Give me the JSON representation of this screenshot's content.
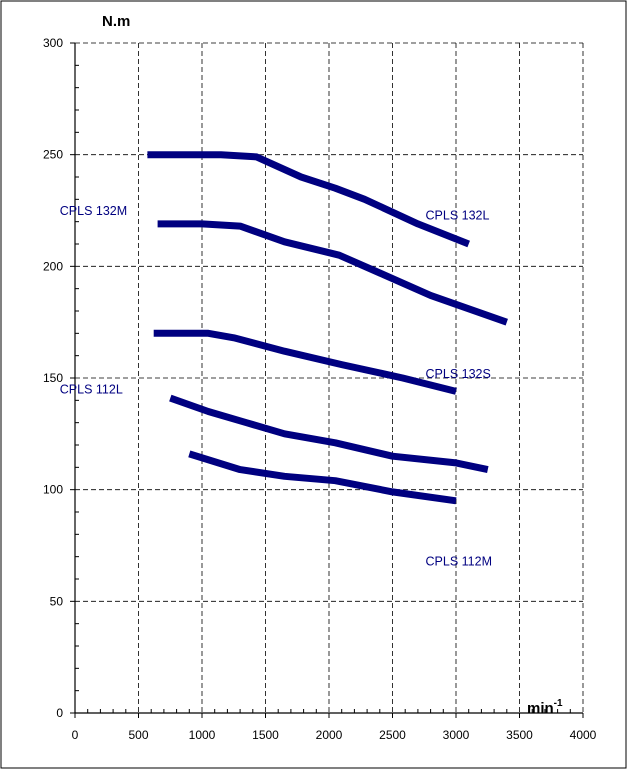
{
  "colors": {
    "line": "#000080",
    "label": "#000080",
    "axis": "#000000",
    "background": "#ffffff"
  },
  "chart_data": {
    "type": "line",
    "title": "",
    "ylabel": "N.m",
    "xlabel": "min",
    "xlabel_superscript": "-1",
    "xlim": [
      0,
      4000
    ],
    "ylim": [
      0,
      300
    ],
    "x_ticks": [
      0,
      500,
      1000,
      1500,
      2000,
      2500,
      3000,
      3500,
      4000
    ],
    "y_ticks": [
      0,
      50,
      100,
      150,
      200,
      250,
      300
    ],
    "grid": true,
    "grid_style": "dashed",
    "series": [
      {
        "name": "CPLS 132L",
        "points": [
          [
            570,
            250
          ],
          [
            1150,
            250
          ],
          [
            1430,
            249
          ],
          [
            1780,
            240
          ],
          [
            2050,
            235
          ],
          [
            2280,
            230
          ],
          [
            2700,
            219
          ],
          [
            3100,
            210
          ]
        ]
      },
      {
        "name": "CPLS 132M",
        "points": [
          [
            650,
            219
          ],
          [
            1000,
            219
          ],
          [
            1300,
            218
          ],
          [
            1650,
            211
          ],
          [
            2080,
            205
          ],
          [
            2400,
            197
          ],
          [
            2800,
            187
          ],
          [
            3400,
            175
          ]
        ]
      },
      {
        "name": "CPLS 132S",
        "points": [
          [
            620,
            170
          ],
          [
            1050,
            170
          ],
          [
            1250,
            168
          ],
          [
            1650,
            162
          ],
          [
            2100,
            156
          ],
          [
            2580,
            150
          ],
          [
            3000,
            144
          ]
        ]
      },
      {
        "name": "CPLS 112L",
        "points": [
          [
            750,
            141
          ],
          [
            1050,
            135
          ],
          [
            1350,
            130
          ],
          [
            1650,
            125
          ],
          [
            2050,
            121
          ],
          [
            2500,
            115
          ],
          [
            3000,
            112
          ],
          [
            3250,
            109
          ]
        ]
      },
      {
        "name": "CPLS 112M",
        "points": [
          [
            900,
            116
          ],
          [
            1300,
            109
          ],
          [
            1650,
            106
          ],
          [
            2050,
            104
          ],
          [
            2500,
            99
          ],
          [
            3000,
            95
          ]
        ]
      }
    ],
    "annotations": [
      {
        "id": "lbl-132l",
        "text": "CPLS 132L",
        "x": 3020,
        "y": 221
      },
      {
        "id": "lbl-132m",
        "text": "CPLS 132M",
        "x": 140,
        "y": 223
      },
      {
        "id": "lbl-132s",
        "text": "CPLS 132S",
        "x": 3020,
        "y": 150
      },
      {
        "id": "lbl-112l",
        "text": "CPLS 112L",
        "x": 140,
        "y": 143
      },
      {
        "id": "lbl-112m",
        "text": "CPLS 112M",
        "x": 3020,
        "y": 66
      }
    ]
  }
}
